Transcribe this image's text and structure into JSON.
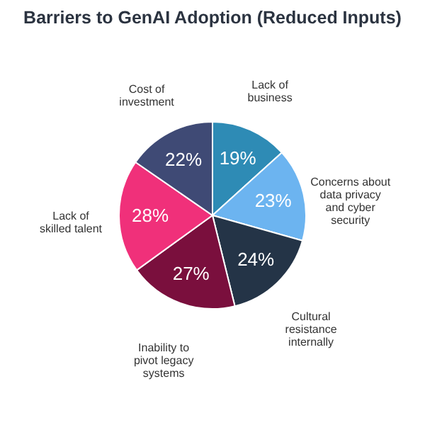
{
  "chart_data": {
    "type": "pie",
    "title": "Barriers to GenAI Adoption (Reduced Inputs)",
    "categories": [
      "Lack of business",
      "Concerns about data privacy and cyber security",
      "Cultural resistance internally",
      "Inability to pivot legacy systems",
      "Lack of skilled talent",
      "Cost of investment"
    ],
    "values": [
      19,
      23,
      24,
      27,
      28,
      22
    ],
    "value_labels": [
      "19%",
      "23%",
      "24%",
      "27%",
      "28%",
      "22%"
    ],
    "colors": [
      "#2e8bb5",
      "#6cb4f0",
      "#243447",
      "#7a0f3d",
      "#f0307a",
      "#3f4a75"
    ],
    "legend": false
  }
}
